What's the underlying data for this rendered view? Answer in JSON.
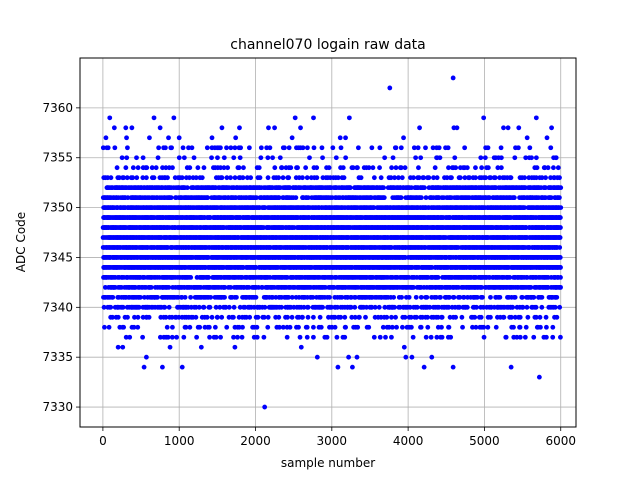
{
  "chart_data": {
    "type": "scatter",
    "title": "channel070 logain raw data",
    "xlabel": "sample number",
    "ylabel": "ADC Code",
    "xlim": [
      -300,
      6200
    ],
    "ylim": [
      7328,
      7365
    ],
    "x_ticks": [
      0,
      1000,
      2000,
      3000,
      4000,
      5000,
      6000
    ],
    "y_ticks": [
      7330,
      7335,
      7340,
      7345,
      7350,
      7355,
      7360
    ],
    "x_tick_labels": [
      "0",
      "1000",
      "2000",
      "3000",
      "4000",
      "5000",
      "6000"
    ],
    "y_tick_labels": [
      "7330",
      "7335",
      "7340",
      "7345",
      "7350",
      "7355",
      "7360"
    ],
    "grid": true,
    "marker_color": "#0000ff",
    "series": [
      {
        "n_samples": 6000,
        "band_min": 7340,
        "band_max": 7352,
        "points": [
          [
            2120,
            7330
          ],
          [
            3760,
            7362
          ],
          [
            4590,
            7363
          ],
          [
            5720,
            7333
          ],
          [
            540,
            7334
          ],
          [
            780,
            7334
          ],
          [
            1040,
            7334
          ],
          [
            3080,
            7334
          ],
          [
            3270,
            7334
          ],
          [
            4210,
            7334
          ],
          [
            4590,
            7334
          ],
          [
            5350,
            7334
          ],
          [
            570,
            7335
          ],
          [
            2810,
            7335
          ],
          [
            3220,
            7335
          ],
          [
            3330,
            7335
          ],
          [
            3970,
            7335
          ],
          [
            4050,
            7335
          ],
          [
            4310,
            7335
          ],
          [
            200,
            7336
          ],
          [
            260,
            7336
          ],
          [
            880,
            7336
          ],
          [
            1290,
            7336
          ],
          [
            1730,
            7336
          ],
          [
            2600,
            7336
          ],
          [
            3950,
            7336
          ],
          [
            90,
            7359
          ],
          [
            150,
            7358
          ],
          [
            300,
            7358
          ],
          [
            670,
            7359
          ],
          [
            930,
            7359
          ],
          [
            2170,
            7358
          ],
          [
            2250,
            7358
          ],
          [
            2520,
            7359
          ],
          [
            2590,
            7358
          ],
          [
            2760,
            7359
          ],
          [
            3230,
            7359
          ],
          [
            4150,
            7358
          ],
          [
            4600,
            7358
          ],
          [
            4640,
            7358
          ],
          [
            4990,
            7359
          ],
          [
            5250,
            7358
          ],
          [
            5310,
            7358
          ],
          [
            5450,
            7358
          ],
          [
            5680,
            7359
          ],
          [
            5880,
            7358
          ],
          [
            40,
            7357
          ],
          [
            310,
            7357
          ],
          [
            380,
            7358
          ],
          [
            610,
            7357
          ],
          [
            750,
            7358
          ],
          [
            860,
            7357
          ],
          [
            1000,
            7357
          ],
          [
            1430,
            7357
          ],
          [
            1560,
            7358
          ],
          [
            1740,
            7357
          ],
          [
            1790,
            7358
          ],
          [
            2480,
            7357
          ],
          [
            3110,
            7357
          ],
          [
            3180,
            7357
          ],
          [
            3940,
            7357
          ],
          [
            5560,
            7357
          ],
          [
            5820,
            7357
          ]
        ]
      }
    ]
  }
}
